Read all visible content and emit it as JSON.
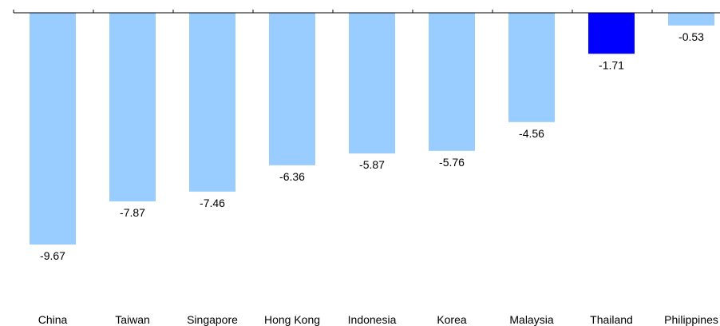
{
  "chart_data": {
    "type": "bar",
    "categories": [
      "China",
      "Taiwan",
      "Singapore",
      "Hong Kong",
      "Indonesia",
      "Korea",
      "Malaysia",
      "Thailand",
      "Philippines"
    ],
    "values": [
      -9.67,
      -7.87,
      -7.46,
      -6.36,
      -5.87,
      -5.76,
      -4.56,
      -1.71,
      -0.53
    ],
    "data_labels": [
      "-9.67",
      "-7.87",
      "-7.46",
      "-6.36",
      "-5.87",
      "-5.76",
      "-4.56",
      "-1.71",
      "-0.53"
    ],
    "highlight_category": "Thailand",
    "colors": {
      "default": "#99CCFF",
      "highlight": "#0000FF",
      "axis": "#000000"
    },
    "ylim": [
      -10,
      0
    ],
    "grid": false,
    "legend": "none",
    "title": "",
    "xlabel": "",
    "ylabel": ""
  }
}
